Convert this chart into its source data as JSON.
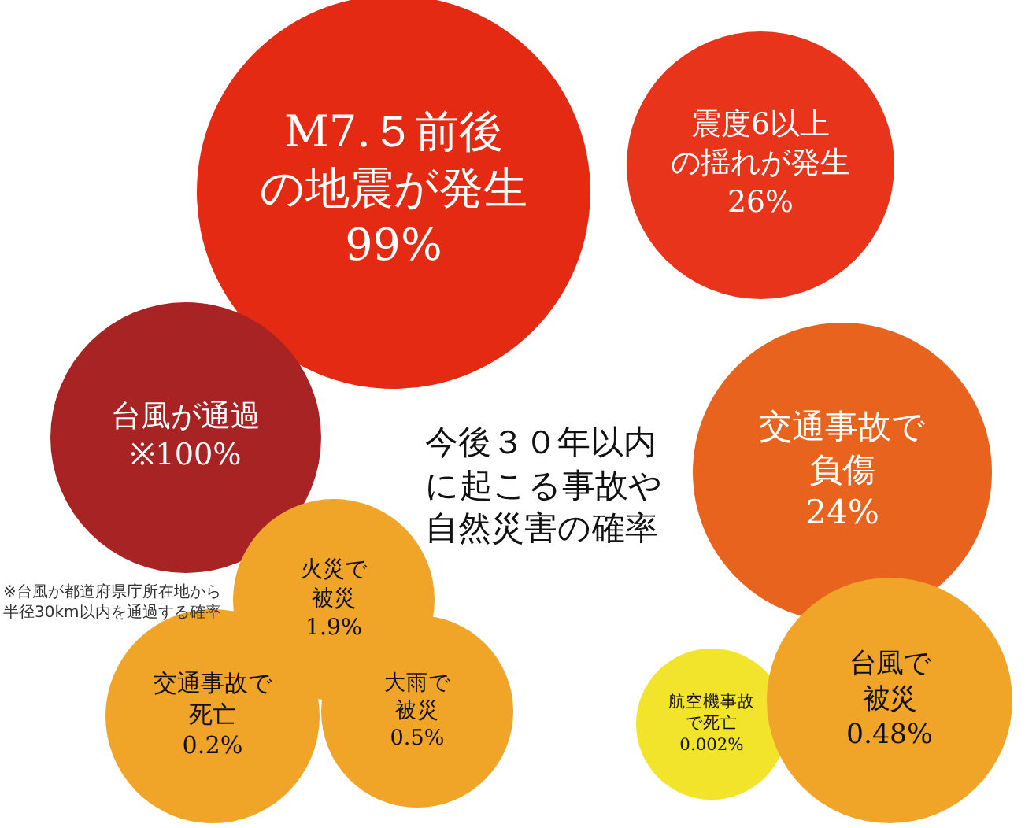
{
  "chart_data": {
    "type": "other",
    "title": "今後３０年以内に起こる事故や自然災害の確率",
    "categories": [
      "M7.５前後の地震が発生",
      "震度6以上の揺れが発生",
      "台風が通過",
      "交通事故で負傷",
      "火災で被災",
      "交通事故で死亡",
      "大雨で被災",
      "航空機事故で死亡",
      "台風で被災"
    ],
    "values": [
      99,
      26,
      100,
      24,
      1.9,
      0.2,
      0.5,
      0.002,
      0.48
    ],
    "value_labels": [
      "99%",
      "26%",
      "※100%",
      "24%",
      "1.9%",
      "0.2%",
      "0.5%",
      "0.002%",
      "0.48%"
    ],
    "colors": [
      "#e42a12",
      "#e8341a",
      "#a82424",
      "#e8641e",
      "#f0a428",
      "#f0a428",
      "#f0a428",
      "#f2e42a",
      "#f0a428"
    ],
    "annotations": [
      "※台風が都道府県庁所在地から半径30km以内を通過する確率"
    ]
  }
}
